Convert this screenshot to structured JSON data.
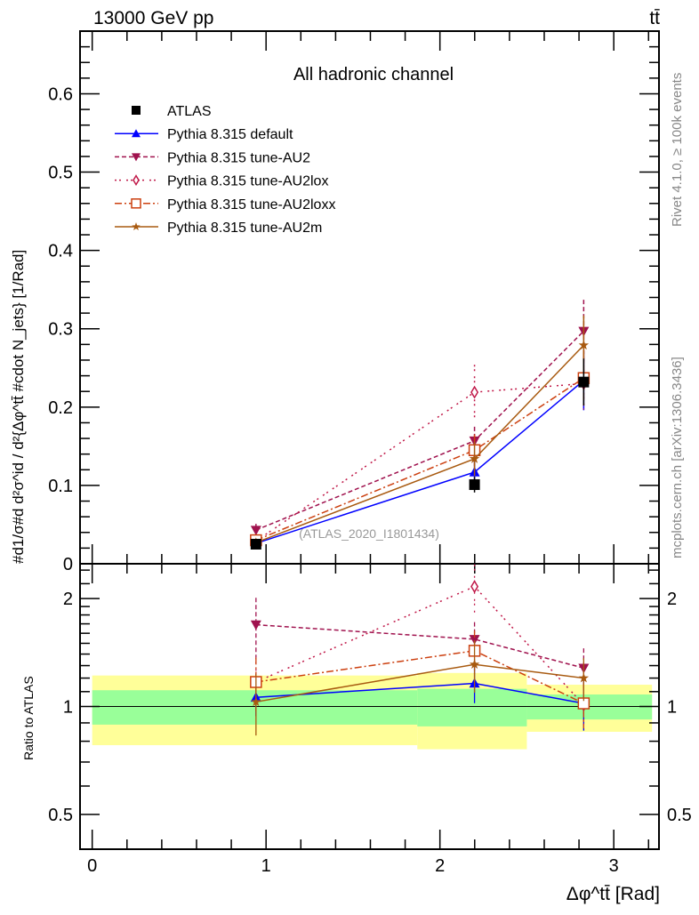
{
  "chart_data": [
    {
      "type": "line",
      "panel": "main",
      "title": "All hadronic channel",
      "top_left_label": "13000 GeV pp",
      "top_right_label": "tt̄",
      "ylabel": "#d1/σ#d d²σ^id / d²{Δφ^tt̄ #cdot N_jets} [1/Rad]",
      "xlim": [
        -0.07,
        3.26
      ],
      "ylim": [
        0,
        0.68
      ],
      "yticks": [
        "0",
        "0.1",
        "0.2",
        "0.3",
        "0.4",
        "0.5",
        "0.6"
      ],
      "yticks_values": [
        0,
        0.1,
        0.2,
        0.3,
        0.4,
        0.5,
        0.6
      ],
      "legend_position": "top-left",
      "annotation": "(ATLAS_2020_I1801434)",
      "side_text_top": "Rivet 4.1.0, ≥ 100k events",
      "side_text_bottom": "mcplots.cern.ch [arXiv:1306.3436]",
      "x": [
        0.942,
        2.199,
        2.827
      ],
      "series": [
        {
          "name": "ATLAS",
          "color": "#000000",
          "marker": "square",
          "dash": "none",
          "values": [
            0.025,
            0.101,
            0.232
          ],
          "yerr": [
            0.002,
            0.01,
            0.03
          ]
        },
        {
          "name": "Pythia 8.315 default",
          "color": "#0000ff",
          "marker": "triangle-up",
          "dash": "solid",
          "values": [
            0.026,
            0.117,
            0.234
          ],
          "yerr": [
            0.003,
            0.014,
            0.038
          ]
        },
        {
          "name": "Pythia 8.315 tune-AU2",
          "color": "#a0124e",
          "marker": "triangle-down",
          "dash": "dashed",
          "values": [
            0.043,
            0.157,
            0.297
          ],
          "yerr": [
            0.008,
            0.018,
            0.04
          ]
        },
        {
          "name": "Pythia 8.315 tune-AU2lox",
          "color": "#c01848",
          "marker": "diamond-open",
          "dash": "dotted",
          "values": [
            0.029,
            0.219,
            0.23
          ],
          "yerr": [
            0.005,
            0.035,
            0.033
          ]
        },
        {
          "name": "Pythia 8.315 tune-AU2loxx",
          "color": "#cc4010",
          "marker": "square-open",
          "dash": "dashdot",
          "values": [
            0.03,
            0.145,
            0.237
          ],
          "yerr": [
            0.005,
            0.02,
            0.035
          ]
        },
        {
          "name": "Pythia 8.315 tune-AU2m",
          "color": "#a85a10",
          "marker": "star",
          "dash": "solid",
          "values": [
            0.027,
            0.134,
            0.279
          ],
          "yerr": [
            0.005,
            0.022,
            0.038
          ]
        }
      ]
    },
    {
      "type": "line",
      "panel": "ratio",
      "ylabel": "Ratio to ATLAS",
      "xlabel": "Δφ^tt̄ [Rad]",
      "yscale": "log",
      "xlim": [
        -0.07,
        3.26
      ],
      "ylim": [
        0.4,
        2.5
      ],
      "xticks": [
        "0",
        "1",
        "2",
        "3"
      ],
      "xticks_values": [
        0,
        1,
        2,
        3
      ],
      "yticks": [
        "0.5",
        "1",
        "2"
      ],
      "yticks_values": [
        0.5,
        1,
        2
      ],
      "bin_edges": [
        0,
        1.87,
        2.5,
        3.22
      ],
      "band_inner": {
        "color": "#99ff99",
        "low": [
          0.89,
          0.88,
          0.92
        ],
        "high": [
          1.11,
          1.12,
          1.08
        ]
      },
      "band_outer": {
        "color": "#ffff99",
        "low": [
          0.78,
          0.76,
          0.85
        ],
        "high": [
          1.22,
          1.24,
          1.15
        ]
      },
      "x": [
        0.942,
        2.199,
        2.827
      ],
      "series": [
        {
          "name": "Pythia 8.315 default",
          "values": [
            1.06,
            1.16,
            1.02
          ]
        },
        {
          "name": "Pythia 8.315 tune-AU2",
          "values": [
            1.69,
            1.54,
            1.28
          ]
        },
        {
          "name": "Pythia 8.315 tune-AU2lox",
          "values": [
            1.17,
            2.16,
            1.01
          ]
        },
        {
          "name": "Pythia 8.315 tune-AU2loxx",
          "values": [
            1.17,
            1.43,
            1.02
          ]
        },
        {
          "name": "Pythia 8.315 tune-AU2m",
          "values": [
            1.03,
            1.31,
            1.2
          ]
        }
      ]
    }
  ]
}
